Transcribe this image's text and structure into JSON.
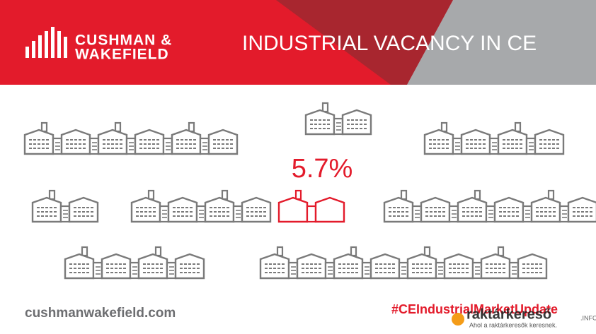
{
  "header": {
    "logo_line1": "CUSHMAN &",
    "logo_line2": "WAKEFIELD",
    "title": "INDUSTRIAL VACANCY IN CE"
  },
  "highlight": {
    "value_label": "5.7%"
  },
  "footer": {
    "website": "cushmanwakefield.com",
    "hashtag": "#CEIndustrialMarketUpdate"
  },
  "watermark": {
    "brand": "raktárkereső",
    "suffix": ".INFO",
    "tagline": "Ahol a raktárkeresők keresnek."
  }
}
